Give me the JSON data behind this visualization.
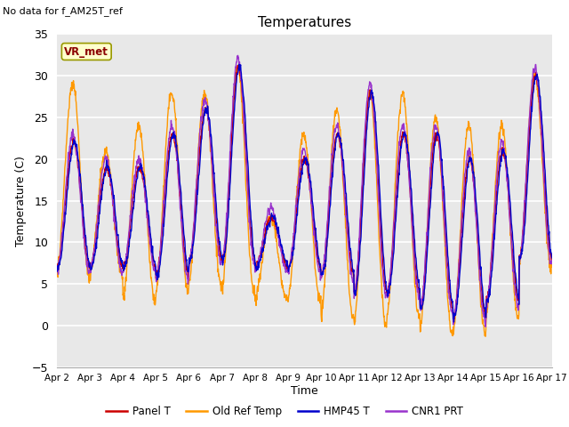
{
  "title": "Temperatures",
  "xlabel": "Time",
  "ylabel": "Temperature (C)",
  "annotation": "No data for f_AM25T_ref",
  "box_label": "VR_met",
  "ylim": [
    -5,
    35
  ],
  "yticks": [
    -5,
    0,
    5,
    10,
    15,
    20,
    25,
    30,
    35
  ],
  "xtick_labels": [
    "Apr 2",
    "Apr 3",
    "Apr 4",
    "Apr 5",
    "Apr 6",
    "Apr 7",
    "Apr 8",
    "Apr 9",
    "Apr 10",
    "Apr 11",
    "Apr 12",
    "Apr 13",
    "Apr 14",
    "Apr 15",
    "Apr 16",
    "Apr 17"
  ],
  "legend": [
    {
      "label": "Panel T",
      "color": "#cc0000"
    },
    {
      "label": "Old Ref Temp",
      "color": "#ff9900"
    },
    {
      "label": "HMP45 T",
      "color": "#0000cc"
    },
    {
      "label": "CNR1 PRT",
      "color": "#9933cc"
    }
  ],
  "bg_color": "#e8e8e8",
  "grid_color": "#ffffff",
  "n_points": 1440,
  "days": 15,
  "day_peaks": [
    22,
    19,
    19,
    23,
    26,
    31,
    13,
    20,
    23,
    28,
    23,
    23,
    20,
    21,
    30
  ],
  "day_mins": [
    7,
    7,
    7,
    6,
    8,
    8,
    7,
    7,
    6,
    4,
    4,
    2,
    1,
    3,
    8
  ],
  "orange_extra_peaks": [
    29,
    21,
    24,
    28,
    28,
    31,
    13,
    23,
    26,
    28,
    28,
    25,
    24,
    24,
    30
  ],
  "orange_extra_mins": [
    6,
    6,
    3,
    4,
    5,
    4,
    3,
    3,
    1,
    0,
    1,
    -1,
    -1,
    1,
    7
  ]
}
